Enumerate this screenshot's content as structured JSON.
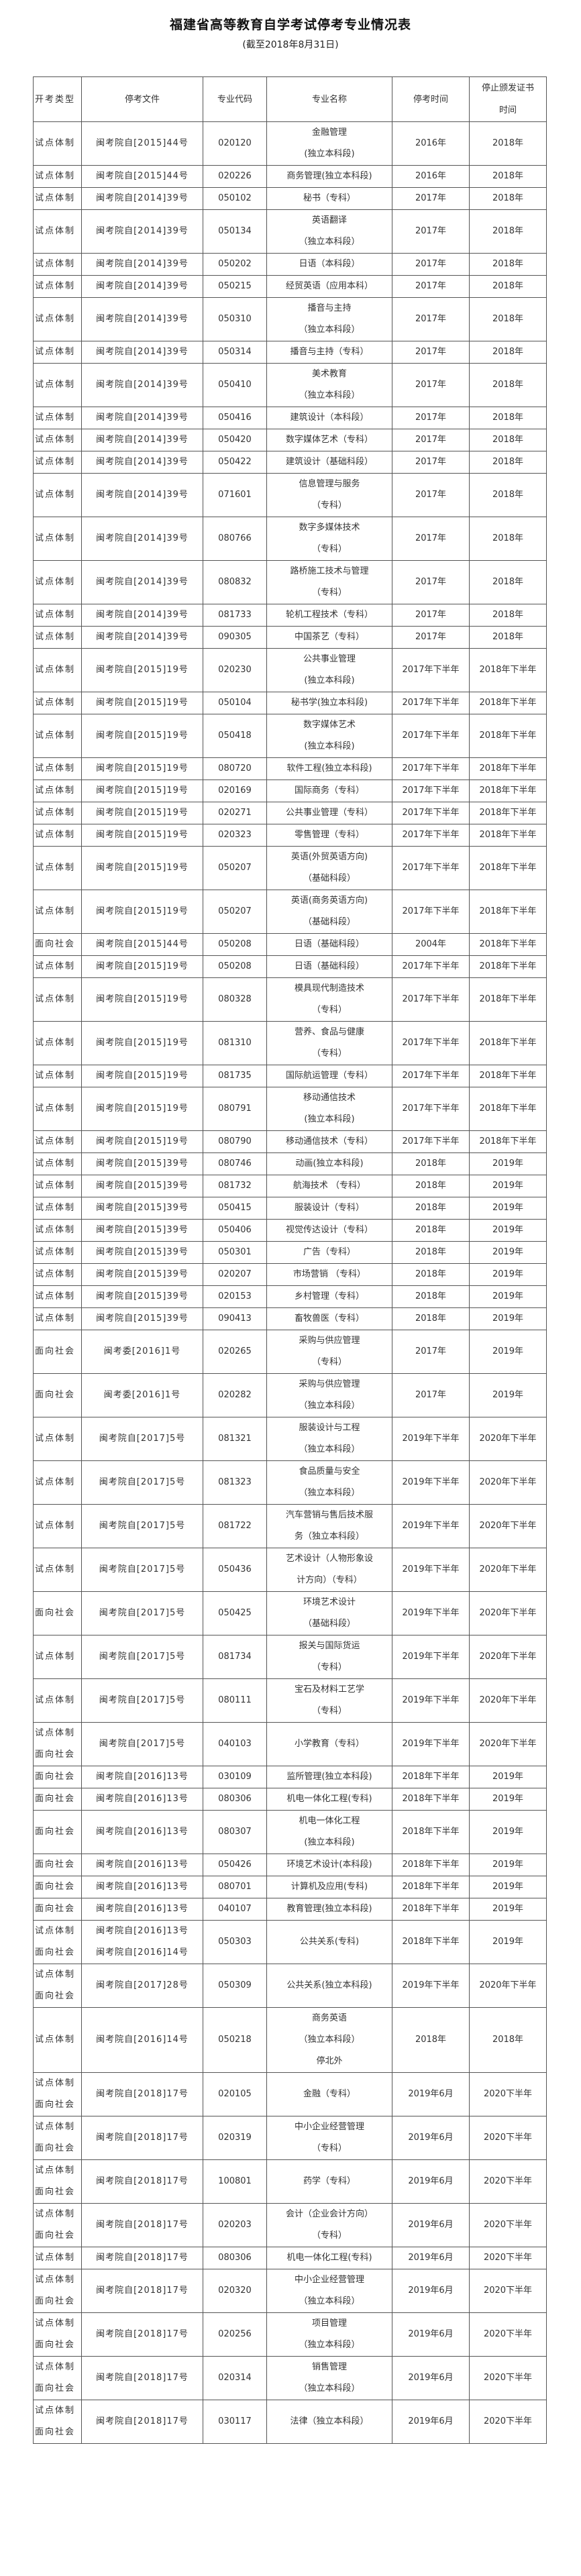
{
  "title": "福建省高等教育自学考试停考专业情况表",
  "subtitle": "(截至2018年8月31日)",
  "columns": [
    "开考类型",
    "停考文件",
    "专业代码",
    "专业名称",
    "停考时间",
    "停止颁发证书\n时间"
  ],
  "rows": [
    [
      "试点体制",
      "闽考院自[2015]44号",
      "020120",
      "金融管理\n(独立本科段)",
      "2016年",
      "2018年"
    ],
    [
      "试点体制",
      "闽考院自[2015]44号",
      "020226",
      "商务管理(独立本科段)",
      "2016年",
      "2018年"
    ],
    [
      "试点体制",
      "闽考院自[2014]39号",
      "050102",
      "秘书（专科）",
      "2017年",
      "2018年"
    ],
    [
      "试点体制",
      "闽考院自[2014]39号",
      "050134",
      "英语翻译\n（独立本科段）",
      "2017年",
      "2018年"
    ],
    [
      "试点体制",
      "闽考院自[2014]39号",
      "050202",
      "日语（本科段）",
      "2017年",
      "2018年"
    ],
    [
      "试点体制",
      "闽考院自[2014]39号",
      "050215",
      "经贸英语（应用本科）",
      "2017年",
      "2018年"
    ],
    [
      "试点体制",
      "闽考院自[2014]39号",
      "050310",
      "播音与主持\n（独立本科段）",
      "2017年",
      "2018年"
    ],
    [
      "试点体制",
      "闽考院自[2014]39号",
      "050314",
      "播音与主持（专科）",
      "2017年",
      "2018年"
    ],
    [
      "试点体制",
      "闽考院自[2014]39号",
      "050410",
      "美术教育\n（独立本科段）",
      "2017年",
      "2018年"
    ],
    [
      "试点体制",
      "闽考院自[2014]39号",
      "050416",
      "建筑设计（本科段）",
      "2017年",
      "2018年"
    ],
    [
      "试点体制",
      "闽考院自[2014]39号",
      "050420",
      "数字媒体艺术（专科）",
      "2017年",
      "2018年"
    ],
    [
      "试点体制",
      "闽考院自[2014]39号",
      "050422",
      "建筑设计（基础科段）",
      "2017年",
      "2018年"
    ],
    [
      "试点体制",
      "闽考院自[2014]39号",
      "071601",
      "信息管理与服务\n（专科）",
      "2017年",
      "2018年"
    ],
    [
      "试点体制",
      "闽考院自[2014]39号",
      "080766",
      "数字多媒体技术\n（专科）",
      "2017年",
      "2018年"
    ],
    [
      "试点体制",
      "闽考院自[2014]39号",
      "080832",
      "路桥施工技术与管理\n（专科）",
      "2017年",
      "2018年"
    ],
    [
      "试点体制",
      "闽考院自[2014]39号",
      "081733",
      "轮机工程技术（专科）",
      "2017年",
      "2018年"
    ],
    [
      "试点体制",
      "闽考院自[2014]39号",
      "090305",
      "中国茶艺（专科）",
      "2017年",
      "2018年"
    ],
    [
      "试点体制",
      "闽考院自[2015]19号",
      "020230",
      "公共事业管理\n(独立本科段)",
      "2017年下半年",
      "2018年下半年"
    ],
    [
      "试点体制",
      "闽考院自[2015]19号",
      "050104",
      "秘书学(独立本科段)",
      "2017年下半年",
      "2018年下半年"
    ],
    [
      "试点体制",
      "闽考院自[2015]19号",
      "050418",
      "数字媒体艺术\n(独立本科段)",
      "2017年下半年",
      "2018年下半年"
    ],
    [
      "试点体制",
      "闽考院自[2015]19号",
      "080720",
      "软件工程(独立本科段)",
      "2017年下半年",
      "2018年下半年"
    ],
    [
      "试点体制",
      "闽考院自[2015]19号",
      "020169",
      "国际商务（专科）",
      "2017年下半年",
      "2018年下半年"
    ],
    [
      "试点体制",
      "闽考院自[2015]19号",
      "020271",
      "公共事业管理（专科）",
      "2017年下半年",
      "2018年下半年"
    ],
    [
      "试点体制",
      "闽考院自[2015]19号",
      "020323",
      "零售管理（专科）",
      "2017年下半年",
      "2018年下半年"
    ],
    [
      "试点体制",
      "闽考院自[2015]19号",
      "050207",
      "英语(外贸英语方向)\n（基础科段）",
      "2017年下半年",
      "2018年下半年"
    ],
    [
      "试点体制",
      "闽考院自[2015]19号",
      "050207",
      "英语(商务英语方向)\n（基础科段）",
      "2017年下半年",
      "2018年下半年"
    ],
    [
      "面向社会",
      "闽考院自[2015]44号",
      "050208",
      "日语（基础科段）",
      "2004年",
      "2018年下半年"
    ],
    [
      "试点体制",
      "闽考院自[2015]19号",
      "050208",
      "日语（基础科段）",
      "2017年下半年",
      "2018年下半年"
    ],
    [
      "试点体制",
      "闽考院自[2015]19号",
      "080328",
      "模具现代制造技术\n（专科）",
      "2017年下半年",
      "2018年下半年"
    ],
    [
      "试点体制",
      "闽考院自[2015]19号",
      "081310",
      "营养、食品与健康\n（专科）",
      "2017年下半年",
      "2018年下半年"
    ],
    [
      "试点体制",
      "闽考院自[2015]19号",
      "081735",
      "国际航运管理（专科）",
      "2017年下半年",
      "2018年下半年"
    ],
    [
      "试点体制",
      "闽考院自[2015]19号",
      "080791",
      "移动通信技术\n(独立本科段)",
      "2017年下半年",
      "2018年下半年"
    ],
    [
      "试点体制",
      "闽考院自[2015]19号",
      "080790",
      "移动通信技术（专科）",
      "2017年下半年",
      "2018年下半年"
    ],
    [
      "试点体制",
      "闽考院自[2015]39号",
      "080746",
      "动画(独立本科段)",
      "2018年",
      "2019年"
    ],
    [
      "试点体制",
      "闽考院自[2015]39号",
      "081732",
      "航海技术 （专科）",
      "2018年",
      "2019年"
    ],
    [
      "试点体制",
      "闽考院自[2015]39号",
      "050415",
      "服装设计（专科）",
      "2018年",
      "2019年"
    ],
    [
      "试点体制",
      "闽考院自[2015]39号",
      "050406",
      "视觉传达设计（专科）",
      "2018年",
      "2019年"
    ],
    [
      "试点体制",
      "闽考院自[2015]39号",
      "050301",
      "广告（专科）",
      "2018年",
      "2019年"
    ],
    [
      "试点体制",
      "闽考院自[2015]39号",
      "020207",
      "市场营销 （专科）",
      "2018年",
      "2019年"
    ],
    [
      "试点体制",
      "闽考院自[2015]39号",
      "020153",
      "乡村管理（专科）",
      "2018年",
      "2019年"
    ],
    [
      "试点体制",
      "闽考院自[2015]39号",
      "090413",
      "畜牧兽医（专科）",
      "2018年",
      "2019年"
    ],
    [
      "面向社会",
      "闽考委[2016]1号",
      "020265",
      "采购与供应管理\n（专科）",
      "2017年",
      "2019年"
    ],
    [
      "面向社会",
      "闽考委[2016]1号",
      "020282",
      "采购与供应管理\n（独立本科段）",
      "2017年",
      "2019年"
    ],
    [
      "试点体制",
      "闽考院自[2017]5号",
      "081321",
      "服装设计与工程\n（独立本科段）",
      "2019年下半年",
      "2020年下半年"
    ],
    [
      "试点体制",
      "闽考院自[2017]5号",
      "081323",
      "食品质量与安全\n（独立本科段）",
      "2019年下半年",
      "2020年下半年"
    ],
    [
      "试点体制",
      "闽考院自[2017]5号",
      "081722",
      "汽车营销与售后技术服\n务（独立本科段）",
      "2019年下半年",
      "2020年下半年"
    ],
    [
      "试点体制",
      "闽考院自[2017]5号",
      "050436",
      "艺术设计（人物形象设\n计方向）（专科）",
      "2019年下半年",
      "2020年下半年"
    ],
    [
      "面向社会",
      "闽考院自[2017]5号",
      "050425",
      "环境艺术设计\n（基础科段）",
      "2019年下半年",
      "2020年下半年"
    ],
    [
      "试点体制",
      "闽考院自[2017]5号",
      "081734",
      "报关与国际货运\n（专科）",
      "2019年下半年",
      "2020年下半年"
    ],
    [
      "试点体制",
      "闽考院自[2017]5号",
      "080111",
      "宝石及材料工艺学\n（专科）",
      "2019年下半年",
      "2020年下半年"
    ],
    [
      "试点体制\n面向社会",
      "闽考院自[2017]5号",
      "040103",
      "小学教育（专科）",
      "2019年下半年",
      "2020年下半年"
    ],
    [
      "面向社会",
      "闽考院自[2016]13号",
      "030109",
      "监所管理(独立本科段)",
      "2018年下半年",
      "2019年"
    ],
    [
      "面向社会",
      "闽考院自[2016]13号",
      "080306",
      "机电一体化工程(专科)",
      "2018年下半年",
      "2019年"
    ],
    [
      "面向社会",
      "闽考院自[2016]13号",
      "080307",
      "机电一体化工程\n(独立本科段)",
      "2018年下半年",
      "2019年"
    ],
    [
      "面向社会",
      "闽考院自[2016]13号",
      "050426",
      "环境艺术设计(本科段)",
      "2018年下半年",
      "2019年"
    ],
    [
      "面向社会",
      "闽考院自[2016]13号",
      "080701",
      "计算机及应用(专科)",
      "2018年下半年",
      "2019年"
    ],
    [
      "面向社会",
      "闽考院自[2016]13号",
      "040107",
      "教育管理(独立本科段)",
      "2018年下半年",
      "2019年"
    ],
    [
      "试点体制\n面向社会",
      "闽考院自[2016]13号\n闽考院自[2016]14号",
      "050303",
      "公共关系(专科)",
      "2018年下半年",
      "2019年"
    ],
    [
      "试点体制\n面向社会",
      "闽考院自[2017]28号",
      "050309",
      "公共关系(独立本科段)",
      "2019年下半年",
      "2020年下半年"
    ],
    [
      "试点体制",
      "闽考院自[2016]14号",
      "050218",
      "商务英语\n（独立本科段）\n停北外",
      "2018年",
      "2018年"
    ],
    [
      "试点体制\n面向社会",
      "闽考院自[2018]17号",
      "020105",
      "金融（专科）",
      "2019年6月",
      "2020下半年"
    ],
    [
      "试点体制\n面向社会",
      "闽考院自[2018]17号",
      "020319",
      "中小企业经营管理\n（专科）",
      "2019年6月",
      "2020下半年"
    ],
    [
      "试点体制\n面向社会",
      "闽考院自[2018]17号",
      "100801",
      "药学（专科）",
      "2019年6月",
      "2020下半年"
    ],
    [
      "试点体制\n面向社会",
      "闽考院自[2018]17号",
      "020203",
      "会计（企业会计方向）\n（专科）",
      "2019年6月",
      "2020下半年"
    ],
    [
      "试点体制",
      "闽考院自[2018]17号",
      "080306",
      "机电一体化工程(专科)",
      "2019年6月",
      "2020下半年"
    ],
    [
      "试点体制\n面向社会",
      "闽考院自[2018]17号",
      "020320",
      "中小企业经营管理\n（独立本科段）",
      "2019年6月",
      "2020下半年"
    ],
    [
      "试点体制\n面向社会",
      "闽考院自[2018]17号",
      "020256",
      "项目管理\n（独立本科段）",
      "2019年6月",
      "2020下半年"
    ],
    [
      "试点体制\n面向社会",
      "闽考院自[2018]17号",
      "020314",
      "销售管理\n（独立本科段）",
      "2019年6月",
      "2020下半年"
    ],
    [
      "试点体制\n面向社会",
      "闽考院自[2018]17号",
      "030117",
      "法律（独立本科段）",
      "2019年6月",
      "2020下半年"
    ]
  ]
}
